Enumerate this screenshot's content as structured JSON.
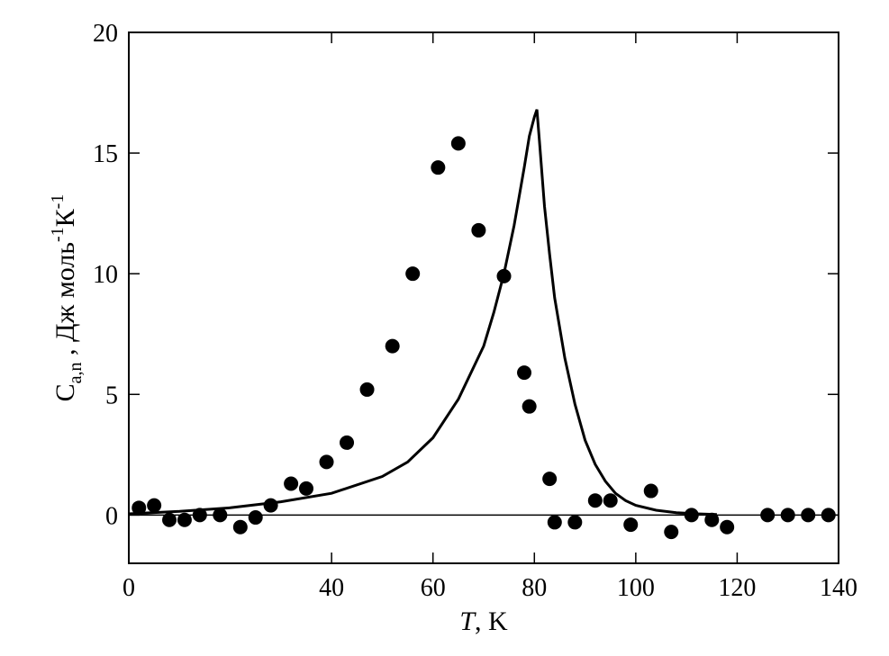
{
  "chart_data": {
    "type": "scatter",
    "xlabel": {
      "italic": "T",
      "rest": ", K"
    },
    "ylabel": {
      "base": "C",
      "subscript": "a,n",
      "middle": " , Дж моль",
      "sup1": "-1",
      "k": "К",
      "sup2": "-1"
    },
    "xlim": [
      0,
      140
    ],
    "ylim": [
      -2,
      20
    ],
    "x_ticks": [
      0,
      40,
      60,
      80,
      100,
      120,
      140
    ],
    "y_ticks": [
      0,
      5,
      10,
      15,
      20
    ],
    "x_tick_labels": [
      "0",
      "40",
      "60",
      "80",
      "100",
      "120",
      "140"
    ],
    "y_tick_labels": [
      "0",
      "5",
      "10",
      "15",
      "20"
    ],
    "reference_line_y": 0,
    "series": [
      {
        "kind": "points",
        "x": [
          2,
          5,
          8,
          11,
          14,
          18,
          22,
          25,
          28,
          32,
          35,
          39,
          43,
          47,
          52,
          56,
          61,
          65,
          69,
          74,
          78,
          79,
          83,
          84,
          88,
          92,
          95,
          99,
          103,
          107,
          111,
          115,
          118,
          126,
          130,
          134,
          138
        ],
        "y": [
          0.3,
          0.4,
          -0.2,
          -0.2,
          0.0,
          0.0,
          -0.5,
          -0.1,
          0.4,
          1.3,
          1.1,
          2.2,
          3.0,
          5.2,
          7.0,
          10.0,
          14.4,
          15.4,
          11.8,
          9.9,
          5.9,
          4.5,
          1.5,
          -0.3,
          -0.3,
          0.6,
          0.6,
          -0.4,
          1.0,
          -0.7,
          0.0,
          -0.2,
          -0.5,
          0.0,
          0.0,
          0.0,
          0.0
        ]
      },
      {
        "kind": "fit-line",
        "x": [
          0,
          10,
          20,
          30,
          40,
          50,
          55,
          60,
          65,
          70,
          72,
          74,
          76,
          78,
          79,
          80,
          80.5,
          81,
          82,
          83,
          84,
          86,
          88,
          90,
          92,
          94,
          96,
          98,
          100,
          104,
          108,
          112,
          116
        ],
        "y": [
          0.05,
          0.15,
          0.3,
          0.55,
          0.9,
          1.6,
          2.2,
          3.2,
          4.8,
          7.0,
          8.4,
          10.0,
          12.0,
          14.4,
          15.7,
          16.5,
          16.8,
          15.5,
          12.8,
          10.8,
          9.0,
          6.5,
          4.6,
          3.1,
          2.1,
          1.4,
          0.9,
          0.6,
          0.4,
          0.2,
          0.1,
          0.05,
          0.02
        ]
      }
    ]
  }
}
